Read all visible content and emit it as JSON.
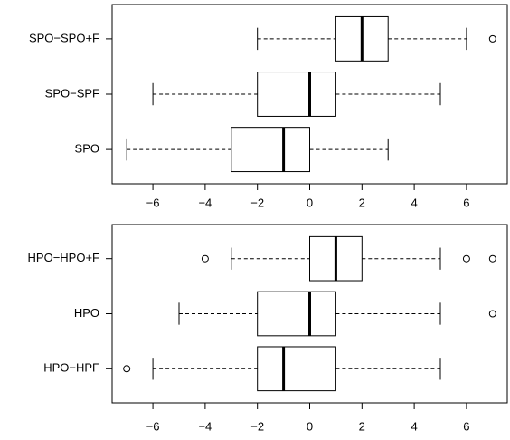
{
  "chart_data": [
    {
      "type": "boxplot",
      "horizontal": true,
      "categories": [
        "SPO",
        "SPO−SPF",
        "SPO−SPO+F"
      ],
      "whisker_low": [
        -7,
        -6,
        -2
      ],
      "q1": [
        -3,
        -2,
        1
      ],
      "median": [
        -1,
        0,
        2
      ],
      "q3": [
        0,
        1,
        3
      ],
      "whisker_high": [
        3,
        5,
        6
      ],
      "outliers": [
        [],
        [],
        [
          7
        ]
      ],
      "xlim": [
        -7.56,
        7.56
      ],
      "xticks": [
        {
          "value": -6,
          "label": "−6"
        },
        {
          "value": -4,
          "label": "−4"
        },
        {
          "value": -2,
          "label": "−2"
        },
        0,
        2,
        4,
        6
      ]
    },
    {
      "type": "boxplot",
      "horizontal": true,
      "categories": [
        "HPO−HPF",
        "HPO",
        "HPO−HPO+F"
      ],
      "whisker_low": [
        -6,
        -5,
        -3
      ],
      "q1": [
        -2,
        -2,
        0
      ],
      "median": [
        -1,
        0,
        1
      ],
      "q3": [
        1,
        1,
        2
      ],
      "whisker_high": [
        5,
        5,
        5
      ],
      "outliers": [
        [
          -7
        ],
        [
          7
        ],
        [
          -4,
          6,
          7
        ]
      ],
      "xlim": [
        -7.56,
        7.56
      ],
      "xticks": [
        {
          "value": -6,
          "label": "−6"
        },
        {
          "value": -4,
          "label": "−4"
        },
        {
          "value": -2,
          "label": "−2"
        },
        0,
        2,
        4,
        6
      ]
    }
  ]
}
